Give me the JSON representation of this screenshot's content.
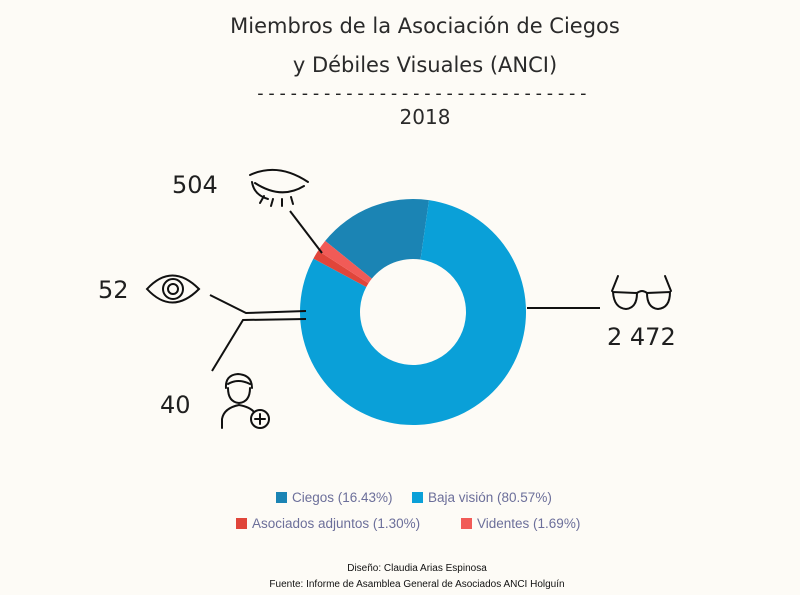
{
  "chart_data": {
    "type": "pie",
    "variant": "donut",
    "title_lines": [
      "Miembros de la Asociación de Ciegos",
      "y Débiles Visuales (ANCI)"
    ],
    "subtitle": "2018",
    "separator": "------------------------------",
    "slices": [
      {
        "key": "ciegos",
        "label": "Ciegos",
        "value": 504,
        "display": "504",
        "percent_label": "16.43%",
        "color": "#1b84b4",
        "icon": "closed-eye-icon"
      },
      {
        "key": "baja",
        "label": "Baja visión",
        "value": 2472,
        "display": "2 472",
        "percent_label": "80.57%",
        "color": "#0aa0d8",
        "icon": "glasses-icon"
      },
      {
        "key": "adjuntos",
        "label": "Asociados adjuntos",
        "value": 40,
        "display": "40",
        "percent_label": "1.30%",
        "color": "#e0453a",
        "icon": "person-plus-icon"
      },
      {
        "key": "videntes",
        "label": "Videntes",
        "value": 52,
        "display": "52",
        "percent_label": "1.69%",
        "color": "#f15b57",
        "icon": "open-eye-icon"
      }
    ],
    "legend": [
      {
        "text": "Ciegos (16.43%)",
        "slice": "ciegos"
      },
      {
        "text": "Baja visión (80.57%)",
        "slice": "baja"
      },
      {
        "text": "Asociados adjuntos (1.30%)",
        "slice": "adjuntos"
      },
      {
        "text": "Videntes (1.69%)",
        "slice": "videntes"
      }
    ],
    "legend_position": "bottom"
  },
  "credits": {
    "design": "Diseño: Claudia Arias Espinosa",
    "source": "Fuente: Informe de Asamblea General de Asociados ANCI Holguín"
  }
}
